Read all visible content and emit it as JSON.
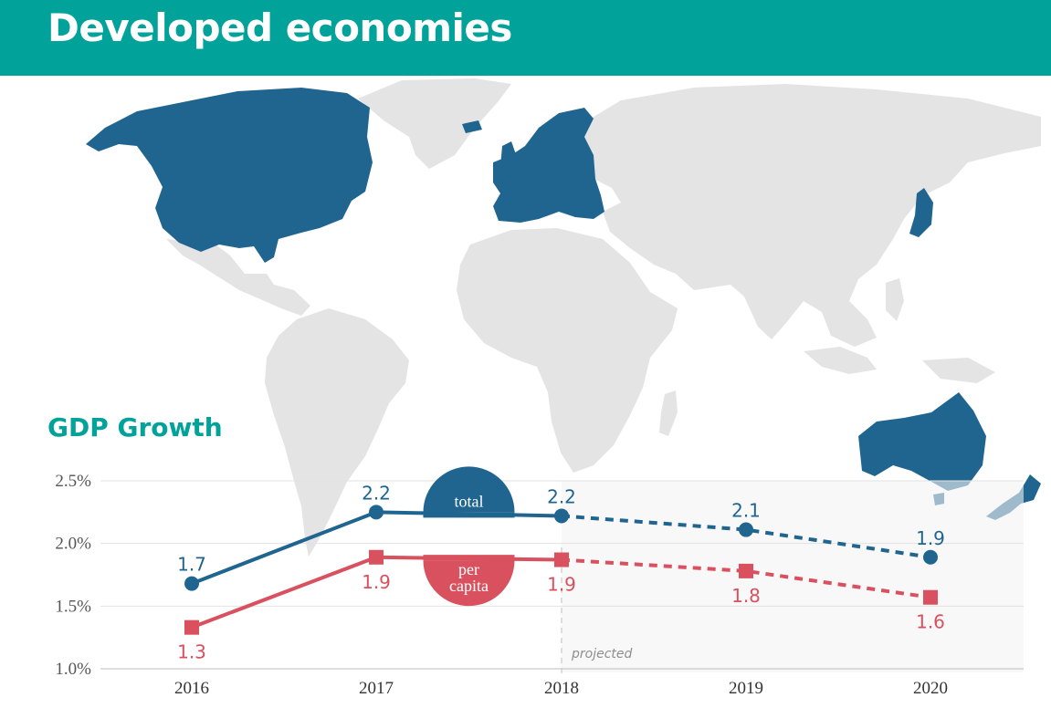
{
  "header": {
    "title": "Developed economies"
  },
  "chart_heading": "GDP Growth",
  "colors": {
    "accent": "#00a29a",
    "developed": "#1f6590",
    "land": "#e4e4e4",
    "total": "#1f6590",
    "per_capita": "#d9505e"
  },
  "chart_data": {
    "type": "line",
    "title": "GDP Growth",
    "categories": [
      "2016",
      "2017",
      "2018",
      "2019",
      "2020"
    ],
    "y_ticks": [
      "2.5%",
      "2.0%",
      "1.5%",
      "1.0%"
    ],
    "ylim": [
      1.0,
      2.5
    ],
    "projected_from": "2018",
    "projected_label": "projected",
    "series": [
      {
        "name": "total",
        "values": [
          1.68,
          2.25,
          2.22,
          2.11,
          1.89
        ],
        "labels": [
          "1.7",
          "2.2",
          "2.2",
          "2.1",
          "1.9"
        ]
      },
      {
        "name": "per capita",
        "values": [
          1.33,
          1.89,
          1.87,
          1.78,
          1.57
        ],
        "labels": [
          "1.3",
          "1.9",
          "1.9",
          "1.8",
          "1.6"
        ]
      }
    ]
  }
}
